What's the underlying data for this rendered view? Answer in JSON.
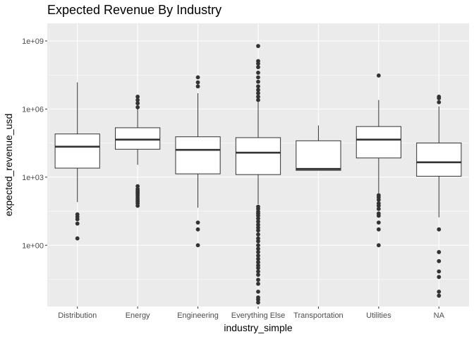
{
  "chart_data": {
    "type": "box",
    "title": "Expected Revenue By Industry",
    "xlabel": "industry_simple",
    "ylabel": "expected_revenue_usd",
    "y_scale": "log10",
    "ylim": [
      0.002,
      6000000000
    ],
    "y_ticks": [
      {
        "value": 1,
        "label": "1e+00"
      },
      {
        "value": 1000,
        "label": "1e+03"
      },
      {
        "value": 1000000,
        "label": "1e+06"
      },
      {
        "value": 1000000000,
        "label": "1e+09"
      }
    ],
    "grid": true,
    "colors": {
      "panel": "#ebebeb",
      "grid": "#ffffff",
      "box_fill": "#ffffff",
      "stroke": "#333333",
      "outlier": "#333333"
    },
    "categories": [
      "Distribution",
      "Energy",
      "Engineering",
      "Everything Else",
      "Transportation",
      "Utilities",
      "NA"
    ],
    "boxes": [
      {
        "category": "Distribution",
        "whisker_low": 80,
        "q1": 2500,
        "median": 22000,
        "q3": 80000,
        "whisker_high": 15000000,
        "outliers": [
          2,
          9,
          14,
          18,
          23
        ]
      },
      {
        "category": "Energy",
        "whisker_low": 3500,
        "q1": 17000,
        "median": 45000,
        "q3": 150000,
        "whisker_high": 1000000,
        "outliers": [
          55,
          70,
          85,
          100,
          120,
          150,
          180,
          210,
          250,
          300,
          400,
          1200000,
          1800000,
          2500000,
          3500000
        ]
      },
      {
        "category": "Engineering",
        "whisker_low": 45,
        "q1": 1400,
        "median": 16000,
        "q3": 60000,
        "whisker_high": 5000000,
        "outliers": [
          1,
          5,
          10,
          10000000,
          15000000,
          25000000
        ]
      },
      {
        "category": "Everything Else",
        "whisker_low": 65,
        "q1": 1300,
        "median": 12000,
        "q3": 55000,
        "whisker_high": 2000000,
        "outliers": [
          0.003,
          0.004,
          0.005,
          0.009,
          0.02,
          0.03,
          0.05,
          0.07,
          0.1,
          0.13,
          0.18,
          0.25,
          0.35,
          0.5,
          0.7,
          1,
          1.5,
          2,
          3,
          4.5,
          6,
          8,
          11,
          15,
          20,
          25,
          30,
          40,
          50,
          2500000,
          3500000,
          5000000,
          7000000,
          10000000,
          16000000,
          25000000,
          40000000,
          70000000,
          100000000,
          130000000,
          600000000
        ]
      },
      {
        "category": "Transportation",
        "whisker_low": 2000,
        "q1": 2000,
        "median": 2300,
        "q3": 40000,
        "whisker_high": 190000,
        "outliers": []
      },
      {
        "category": "Utilities",
        "whisker_low": 200,
        "q1": 7000,
        "median": 45000,
        "q3": 170000,
        "whisker_high": 2500000,
        "outliers": [
          1,
          5,
          10,
          20,
          25,
          40,
          55,
          70,
          100,
          130,
          160,
          30000000
        ]
      },
      {
        "category": "NA",
        "whisker_low": 17,
        "q1": 1100,
        "median": 4500,
        "q3": 32000,
        "whisker_high": 1300000,
        "outliers": [
          0.006,
          0.009,
          0.04,
          0.07,
          0.2,
          0.5,
          5,
          2000000,
          3000000,
          3500000
        ]
      }
    ]
  }
}
